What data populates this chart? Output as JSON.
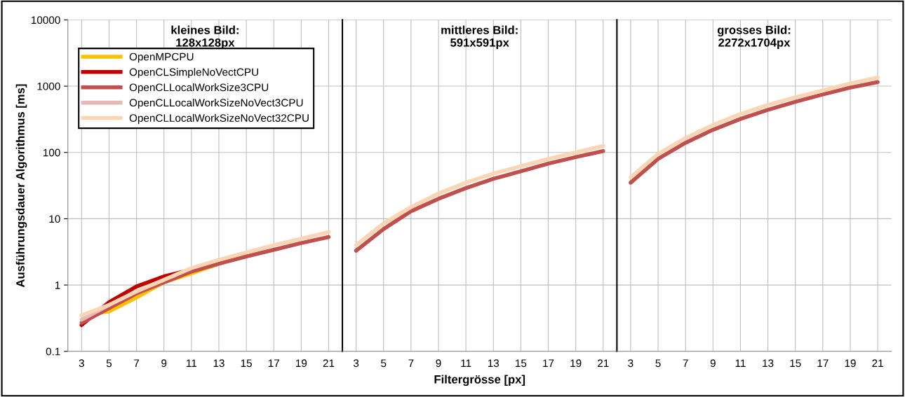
{
  "chart_data": [
    {
      "type": "line",
      "title": "kleines Bild:\n128x128px",
      "ylabel": "Ausführungsdauer Algorithmus [ms]",
      "log": true,
      "grid": true,
      "legend": "top left",
      "x": [
        3,
        5,
        7,
        9,
        11,
        13,
        15,
        17,
        19,
        21
      ],
      "xlim": [
        2,
        22
      ],
      "xticks": [
        3,
        5,
        7,
        9,
        11,
        13,
        15,
        17,
        19,
        21
      ],
      "ylim": [
        0.1,
        10000
      ],
      "yticks": [
        0.1,
        1,
        10,
        100,
        1000,
        10000
      ],
      "series": [
        {
          "name": "OpenMPCPU",
          "color": "#ffc000",
          "values": [
            0.35,
            0.4,
            0.65,
            1.1,
            1.5,
            2.1,
            2.8,
            null,
            null,
            null
          ]
        },
        {
          "name": "OpenCLSimpleNoVectCPU",
          "color": "#c00000",
          "values": [
            0.25,
            0.55,
            0.95,
            1.35,
            1.7,
            null,
            null,
            null,
            null,
            null
          ]
        },
        {
          "name": "OpenCLLocalWorkSize3CPU",
          "color": "#c0504d",
          "values": [
            0.27,
            0.45,
            0.75,
            1.1,
            1.6,
            2.1,
            2.7,
            3.4,
            4.3,
            5.3
          ]
        },
        {
          "name": "OpenCLLocalWorkSizeNoVect3CPU",
          "color": "#e6b9b8",
          "values": [
            0.3,
            0.5,
            null,
            null,
            null,
            null,
            null,
            null,
            null,
            null
          ]
        },
        {
          "name": "OpenCLLocalWorkSizeNoVect32CPU",
          "color": "#fcd5b4",
          "values": [
            0.35,
            0.5,
            0.8,
            1.2,
            1.8,
            2.4,
            3.1,
            4.0,
            5.0,
            6.3
          ]
        }
      ]
    },
    {
      "type": "line",
      "title": "mittleres Bild:\n591x591px",
      "xlabel": "Filtergrösse [px]",
      "log": true,
      "grid": true,
      "tick_labels": "x",
      "x": [
        3,
        5,
        7,
        9,
        11,
        13,
        15,
        17,
        19,
        21
      ],
      "xlim": [
        2,
        22
      ],
      "xticks": [
        3,
        5,
        7,
        9,
        11,
        13,
        15,
        17,
        19,
        21
      ],
      "ylim": [
        0.1,
        10000
      ],
      "series": [
        {
          "color": "#c0504d",
          "values": [
            3.3,
            7,
            13,
            20,
            29,
            40,
            52,
            68,
            85,
            105
          ]
        },
        {
          "color": "#fcd5b4",
          "values": [
            4,
            8.5,
            15,
            24,
            35,
            48,
            62,
            80,
            100,
            125
          ]
        }
      ]
    },
    {
      "type": "line",
      "title": "grosses Bild:\n2272x1704px",
      "log": true,
      "grid": true,
      "tick_labels": "x",
      "x": [
        3,
        5,
        7,
        9,
        11,
        13,
        15,
        17,
        19,
        21
      ],
      "xlim": [
        2,
        22
      ],
      "xticks": [
        3,
        5,
        7,
        9,
        11,
        13,
        15,
        17,
        19,
        21
      ],
      "ylim": [
        0.1,
        10000
      ],
      "series": [
        {
          "color": "#c0504d",
          "values": [
            35,
            80,
            140,
            220,
            320,
            440,
            580,
            750,
            950,
            1150
          ]
        },
        {
          "color": "#fcd5b4",
          "values": [
            42,
            95,
            165,
            260,
            380,
            520,
            680,
            860,
            1100,
            1350
          ]
        }
      ]
    }
  ]
}
